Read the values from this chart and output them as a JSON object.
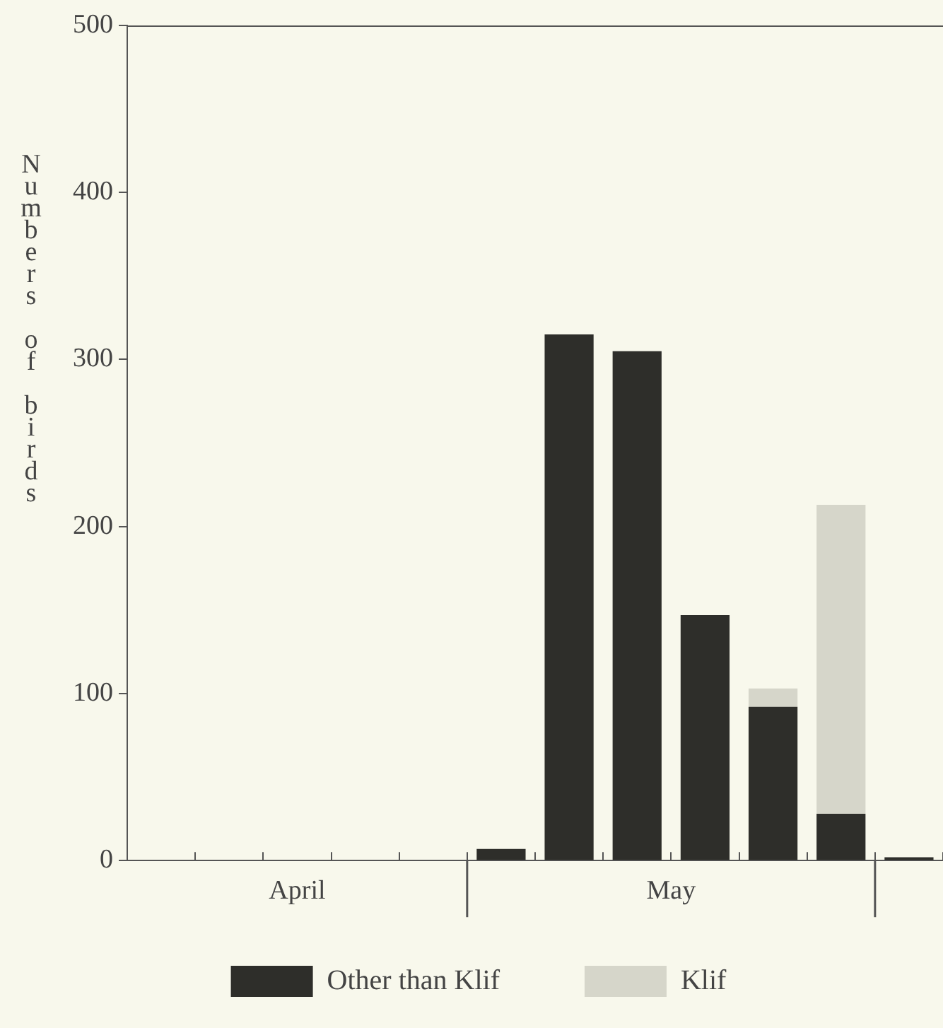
{
  "chart_data": {
    "type": "bar",
    "stacked": true,
    "ylabel": "Numbers of birds",
    "categories": [
      null,
      null,
      null,
      null,
      null,
      null,
      null,
      null,
      null,
      null,
      null,
      null
    ],
    "series": [
      {
        "name": "Other than Klif",
        "color": "#2e2e2a",
        "values": [
          0,
          0,
          0,
          0,
          0,
          7,
          315,
          305,
          147,
          92,
          28,
          2
        ]
      },
      {
        "name": "Klif",
        "color": "#d6d6ca",
        "values": [
          0,
          0,
          0,
          0,
          0,
          0,
          0,
          0,
          0,
          11,
          185,
          0
        ]
      }
    ],
    "ylim": [
      0,
      500
    ],
    "yticks": [
      0,
      100,
      200,
      300,
      400,
      500
    ],
    "grid": false,
    "legend": "bottom",
    "annotations": [
      "April",
      "May"
    ]
  }
}
